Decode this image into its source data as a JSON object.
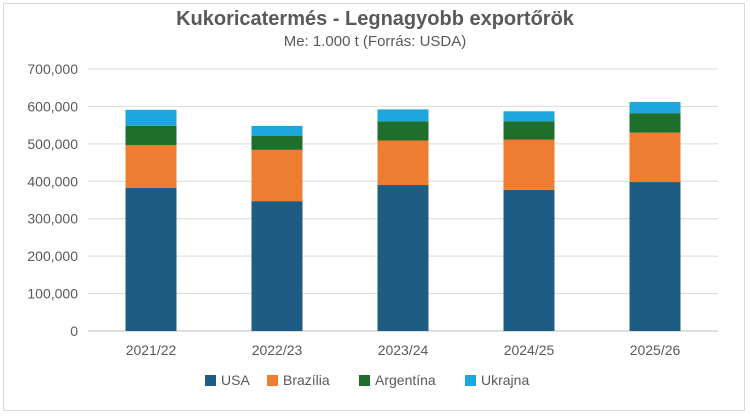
{
  "chart_data": {
    "type": "bar",
    "stacked": true,
    "title": "Kukoricatermés - Legnagyobb exportőrök",
    "subtitle": "Me: 1.000 t (Forrás: USDA)",
    "categories": [
      "2021/22",
      "2022/23",
      "2023/24",
      "2024/25",
      "2025/26"
    ],
    "series": [
      {
        "name": "USA",
        "color": "#1f5c84",
        "values": [
          382000,
          347000,
          390000,
          377000,
          398000
        ]
      },
      {
        "name": "Brazília",
        "color": "#ed7d31",
        "values": [
          115000,
          137000,
          119000,
          134000,
          132000
        ]
      },
      {
        "name": "Argentína",
        "color": "#1f6e2c",
        "values": [
          51000,
          37000,
          51000,
          49000,
          52000
        ]
      },
      {
        "name": "Ukrajna",
        "color": "#1ea7dd",
        "values": [
          43000,
          27000,
          32000,
          27000,
          30000
        ]
      }
    ],
    "ylim": [
      0,
      700000
    ],
    "yticks": [
      "0",
      "100,000",
      "200,000",
      "300,000",
      "400,000",
      "500,000",
      "600,000",
      "700,000"
    ],
    "grid": true,
    "legend_position": "bottom"
  }
}
